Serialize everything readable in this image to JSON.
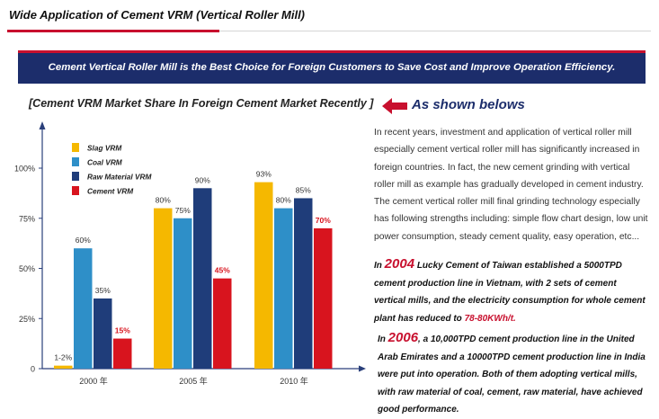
{
  "header": {
    "title": "Wide Application of Cement VRM (Vertical Roller Mill)"
  },
  "banner": {
    "text": "Cement Vertical Roller Mill is the Best Choice for Foreign Customers to Save Cost and Improve Operation Efficiency."
  },
  "section": {
    "heading": "[Cement VRM Market Share In Foreign Cement Market Recently ]",
    "pointer_text": "As shown belows",
    "arrow_icon": "left-arrow-icon"
  },
  "colors": {
    "accent_red": "#c8102e",
    "navy": "#1c2d6b"
  },
  "chart_data": {
    "type": "bar",
    "categories": [
      "2000 年",
      "2005 年",
      "2010 年"
    ],
    "series": [
      {
        "name": "Slag VRM",
        "color": "#f5b800",
        "values": [
          1.5,
          80,
          93
        ],
        "labels": [
          "1-2%",
          "80%",
          "93%"
        ]
      },
      {
        "name": "Coal VRM",
        "color": "#2e8fc8",
        "values": [
          60,
          75,
          80
        ],
        "labels": [
          "60%",
          "75%",
          "80%"
        ]
      },
      {
        "name": "Raw Material VRM",
        "color": "#1f3d7a",
        "values": [
          35,
          90,
          85
        ],
        "labels": [
          "35%",
          "90%",
          "85%"
        ]
      },
      {
        "name": "Cement VRM",
        "color": "#d8141e",
        "values": [
          15,
          45,
          70
        ],
        "labels": [
          "15%",
          "45%",
          "70%"
        ]
      }
    ],
    "ylim": [
      0,
      100
    ],
    "yticks": [
      "0",
      "25%",
      "50%",
      "75%",
      "100%"
    ],
    "legend": "top-left",
    "grid": false
  },
  "text": {
    "intro": "In recent years, investment and application of vertical roller mill especially cement vertical roller mill has significantly increased in foreign countries. In fact, the new cement grinding with vertical roller mill as example has gradually developed in cement industry. The cement vertical roller mill final grinding technology especially has following strengths including: simple flow chart design, low unit power consumption, steady cement quality, easy operation, etc...",
    "p2004": {
      "prefix": "In ",
      "year": "2004",
      "body": " Lucky Cement of Taiwan established a 5000TPD cement production line in Vietnam, with 2 sets of cement vertical mills, and the electricity consumption for whole cement plant has reduced to ",
      "value": "78-80KWh/t."
    },
    "p2006": {
      "prefix": "In ",
      "year": "2006",
      "body": ", a 10,000TPD cement production line in the United Arab Emirates and a 10000TPD cement production line in India were put into operation. Both of them adopting vertical mills, with raw material of coal, cement, raw material, have achieved good performance."
    }
  }
}
